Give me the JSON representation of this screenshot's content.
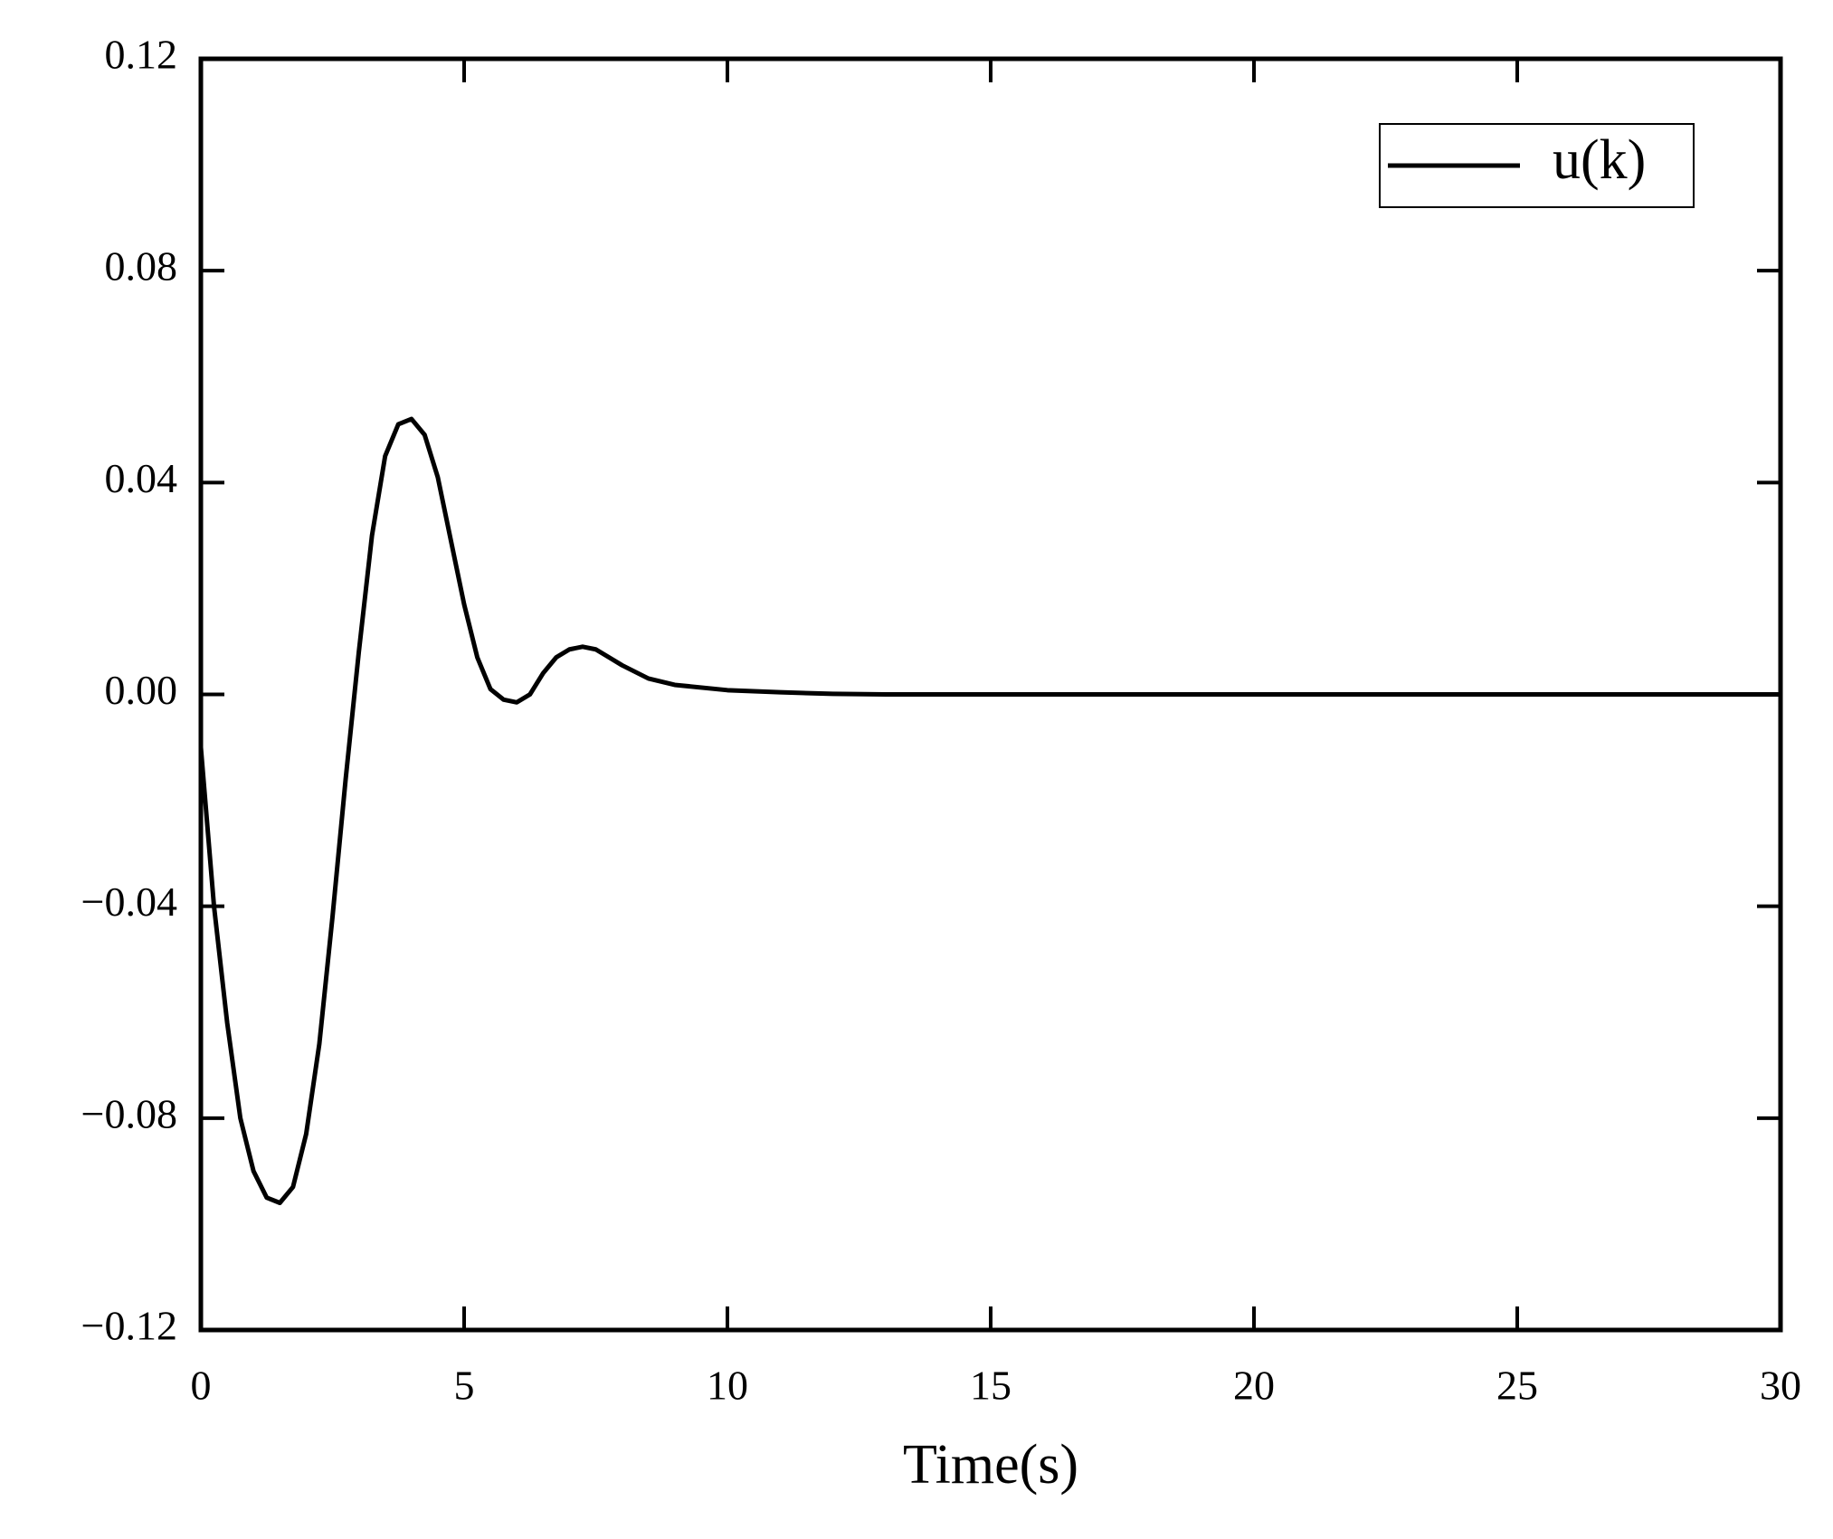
{
  "chart_data": {
    "type": "line",
    "xlabel": "Time(s)",
    "x": [
      0,
      0.25,
      0.5,
      0.75,
      1.0,
      1.25,
      1.5,
      1.75,
      2.0,
      2.25,
      2.5,
      2.75,
      3.0,
      3.25,
      3.5,
      3.75,
      4.0,
      4.25,
      4.5,
      4.75,
      5.0,
      5.25,
      5.5,
      5.75,
      6.0,
      6.25,
      6.5,
      6.75,
      7.0,
      7.25,
      7.5,
      7.75,
      8.0,
      8.5,
      9.0,
      10,
      11,
      12,
      13,
      30
    ],
    "series": [
      {
        "name": "u(k)",
        "color": "#000000",
        "values": [
          -0.01,
          -0.04,
          -0.062,
          -0.08,
          -0.09,
          -0.095,
          -0.096,
          -0.093,
          -0.083,
          -0.066,
          -0.042,
          -0.016,
          0.008,
          0.03,
          0.045,
          0.051,
          0.052,
          0.049,
          0.041,
          0.029,
          0.017,
          0.007,
          0.001,
          -0.001,
          -0.0015,
          0.0,
          0.004,
          0.007,
          0.0085,
          0.009,
          0.0085,
          0.007,
          0.0055,
          0.003,
          0.0018,
          0.0008,
          0.0004,
          0.0001,
          0,
          0
        ]
      }
    ],
    "xlim": [
      0,
      30
    ],
    "xticks": [
      0,
      5,
      10,
      15,
      20,
      25,
      30
    ],
    "ylim": [
      -0.12,
      0.12
    ],
    "yticks": [
      {
        "value": -0.12,
        "label": "−0.12"
      },
      {
        "value": -0.08,
        "label": "−0.08"
      },
      {
        "value": -0.04,
        "label": "−0.04"
      },
      {
        "value": 0,
        "label": "0.00"
      },
      0.04,
      0.08,
      0.12
    ],
    "grid": false,
    "legend": "upper right"
  }
}
